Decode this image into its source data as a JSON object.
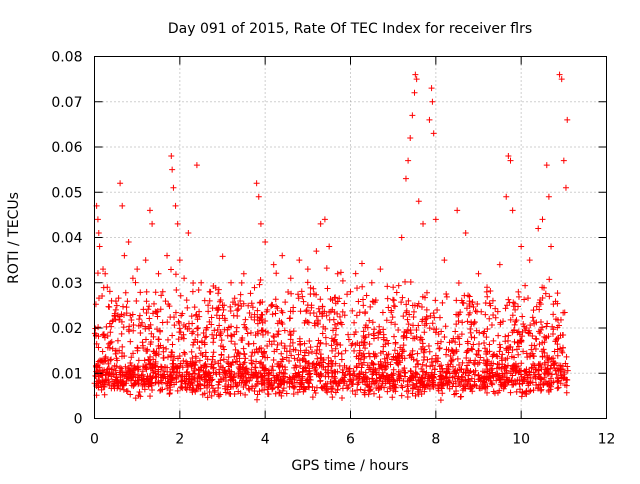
{
  "chart_data": {
    "type": "scatter",
    "title": "Day 091 of 2015, Rate Of TEC Index for receiver flrs",
    "xlabel": "GPS time / hours",
    "ylabel": "ROTI / TECUs",
    "xlim": [
      0,
      12
    ],
    "ylim": [
      0,
      0.08
    ],
    "x_ticks": [
      0,
      2,
      4,
      6,
      8,
      10,
      12
    ],
    "y_ticks": [
      0,
      0.01,
      0.02,
      0.03,
      0.04,
      0.05,
      0.06,
      0.07,
      0.08
    ],
    "x_tick_labels": [
      "0",
      "2",
      "4",
      "6",
      "8",
      "10",
      "12"
    ],
    "y_tick_labels": [
      "0",
      "0.01",
      "0.02",
      "0.03",
      "0.04",
      "0.05",
      "0.06",
      "0.07",
      "0.08"
    ],
    "grid": true,
    "marker": "+",
    "color": "#ff0000",
    "x_data_range": [
      0.0,
      11.1
    ],
    "series": [
      {
        "name": "ROTI",
        "points": [
          [
            0.05,
            0.047
          ],
          [
            0.08,
            0.044
          ],
          [
            0.1,
            0.041
          ],
          [
            0.12,
            0.038
          ],
          [
            0.2,
            0.033
          ],
          [
            0.25,
            0.032
          ],
          [
            0.3,
            0.029
          ],
          [
            0.4,
            0.026
          ],
          [
            0.5,
            0.024
          ],
          [
            0.6,
            0.052
          ],
          [
            0.65,
            0.047
          ],
          [
            0.7,
            0.036
          ],
          [
            0.8,
            0.039
          ],
          [
            0.9,
            0.031
          ],
          [
            1.0,
            0.033
          ],
          [
            1.2,
            0.035
          ],
          [
            1.3,
            0.046
          ],
          [
            1.35,
            0.043
          ],
          [
            1.5,
            0.032
          ],
          [
            1.6,
            0.028
          ],
          [
            1.7,
            0.036
          ],
          [
            1.8,
            0.058
          ],
          [
            1.82,
            0.055
          ],
          [
            1.85,
            0.051
          ],
          [
            1.9,
            0.047
          ],
          [
            1.95,
            0.043
          ],
          [
            2.0,
            0.035
          ],
          [
            2.1,
            0.031
          ],
          [
            2.2,
            0.041
          ],
          [
            2.4,
            0.056
          ],
          [
            2.5,
            0.03
          ],
          [
            2.7,
            0.028
          ],
          [
            3.0,
            0.025
          ],
          [
            3.2,
            0.03
          ],
          [
            3.5,
            0.032
          ],
          [
            3.8,
            0.052
          ],
          [
            3.85,
            0.049
          ],
          [
            3.9,
            0.043
          ],
          [
            4.0,
            0.039
          ],
          [
            4.2,
            0.034
          ],
          [
            4.4,
            0.036
          ],
          [
            4.6,
            0.031
          ],
          [
            4.8,
            0.035
          ],
          [
            5.0,
            0.033
          ],
          [
            5.2,
            0.037
          ],
          [
            5.3,
            0.043
          ],
          [
            5.4,
            0.044
          ],
          [
            5.5,
            0.038
          ],
          [
            5.7,
            0.032
          ],
          [
            6.0,
            0.028
          ],
          [
            6.3,
            0.025
          ],
          [
            6.5,
            0.03
          ],
          [
            6.7,
            0.033
          ],
          [
            7.0,
            0.029
          ],
          [
            7.2,
            0.04
          ],
          [
            7.3,
            0.053
          ],
          [
            7.35,
            0.057
          ],
          [
            7.4,
            0.062
          ],
          [
            7.45,
            0.067
          ],
          [
            7.5,
            0.072
          ],
          [
            7.52,
            0.076
          ],
          [
            7.55,
            0.075
          ],
          [
            7.6,
            0.048
          ],
          [
            7.7,
            0.043
          ],
          [
            7.85,
            0.066
          ],
          [
            7.9,
            0.073
          ],
          [
            7.92,
            0.07
          ],
          [
            7.95,
            0.063
          ],
          [
            8.0,
            0.044
          ],
          [
            8.2,
            0.035
          ],
          [
            8.5,
            0.046
          ],
          [
            8.7,
            0.041
          ],
          [
            9.0,
            0.032
          ],
          [
            9.2,
            0.029
          ],
          [
            9.5,
            0.034
          ],
          [
            9.65,
            0.049
          ],
          [
            9.7,
            0.058
          ],
          [
            9.75,
            0.057
          ],
          [
            9.8,
            0.046
          ],
          [
            10.0,
            0.038
          ],
          [
            10.2,
            0.035
          ],
          [
            10.4,
            0.042
          ],
          [
            10.5,
            0.044
          ],
          [
            10.6,
            0.056
          ],
          [
            10.65,
            0.049
          ],
          [
            10.7,
            0.038
          ],
          [
            10.9,
            0.076
          ],
          [
            10.95,
            0.075
          ],
          [
            11.0,
            0.057
          ],
          [
            11.05,
            0.051
          ],
          [
            11.08,
            0.066
          ]
        ]
      }
    ]
  }
}
